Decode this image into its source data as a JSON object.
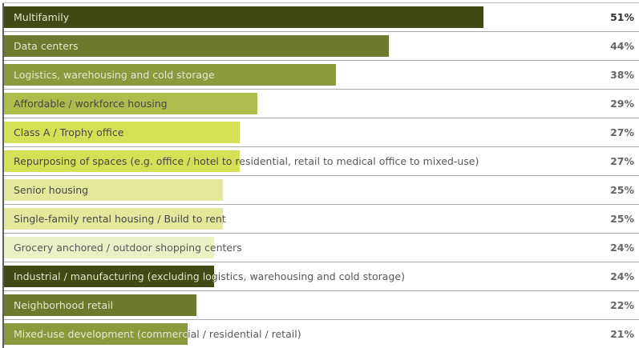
{
  "chart_data": {
    "type": "bar",
    "orientation": "horizontal",
    "categories": [
      "Multifamily",
      "Data centers",
      "Logistics, warehousing and cold storage",
      "Affordable / workforce housing",
      "Class A / Trophy office",
      "Repurposing of spaces (e.g. office / hotel to residential, retail to medical office to mixed-use)",
      "Senior housing",
      "Single-family rental housing / Build to rent",
      "Grocery anchored / outdoor shopping centers",
      "Industrial / manufacturing (excluding logistics, warehousing and cold storage)",
      "Neighborhood retail",
      "Mixed-use development (commercial / residential / retail)"
    ],
    "values": [
      51,
      44,
      38,
      29,
      27,
      27,
      25,
      25,
      24,
      24,
      22,
      21
    ],
    "value_labels": [
      "51%",
      "44%",
      "38%",
      "29%",
      "27%",
      "27%",
      "25%",
      "25%",
      "24%",
      "24%",
      "22%",
      "21%"
    ],
    "colors": [
      "#3f4a14",
      "#6b7a2c",
      "#8b9a3c",
      "#aebc4c",
      "#d4e055",
      "#d4e055",
      "#e3e89a",
      "#e3e89a",
      "#ecf0c6",
      "#3f4a14",
      "#6b7a2c",
      "#8b9a3c"
    ],
    "text_colors": [
      "#e8ecd8",
      "#e8ecd8",
      "#e8ecd8",
      "#444",
      "#444",
      "#444",
      "#444",
      "#444",
      "#555",
      "#e8ecd8",
      "#e8ecd8",
      "#e8ecd8"
    ],
    "grid": false
  }
}
